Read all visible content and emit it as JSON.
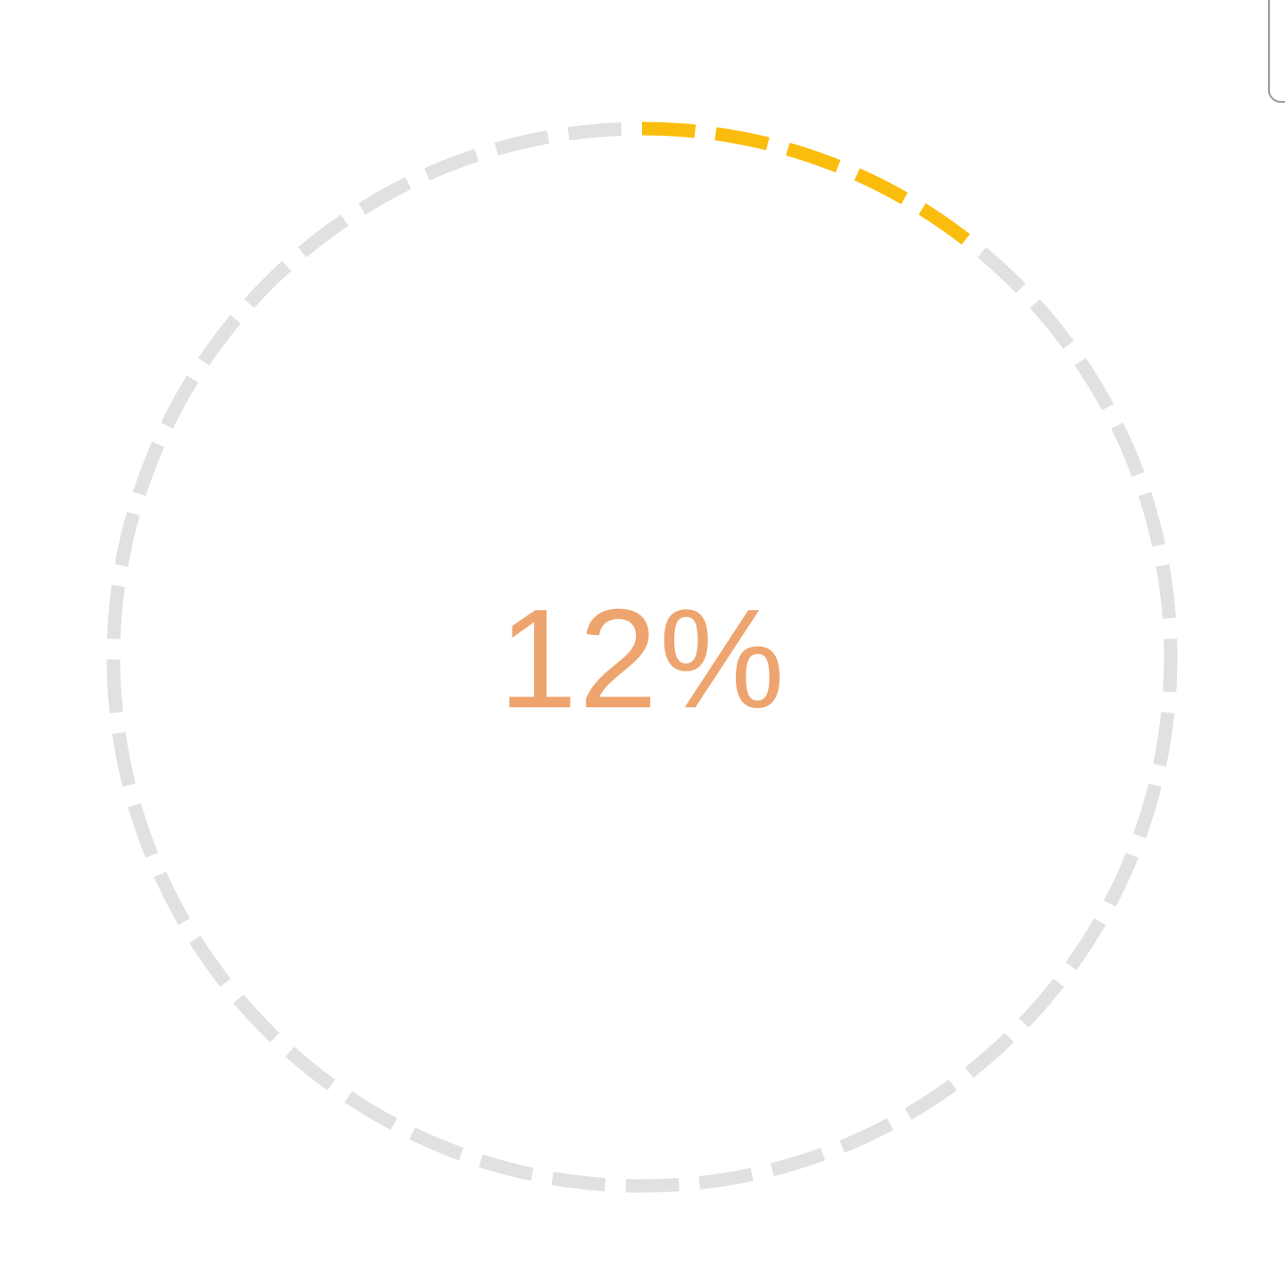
{
  "progress": {
    "value": 0.12,
    "label": "12%",
    "segments_total": 45
  },
  "colors": {
    "track": "#e1e1e3",
    "fill": "#fbbd0d",
    "label": "#eea46e",
    "background": "#ffffff"
  }
}
